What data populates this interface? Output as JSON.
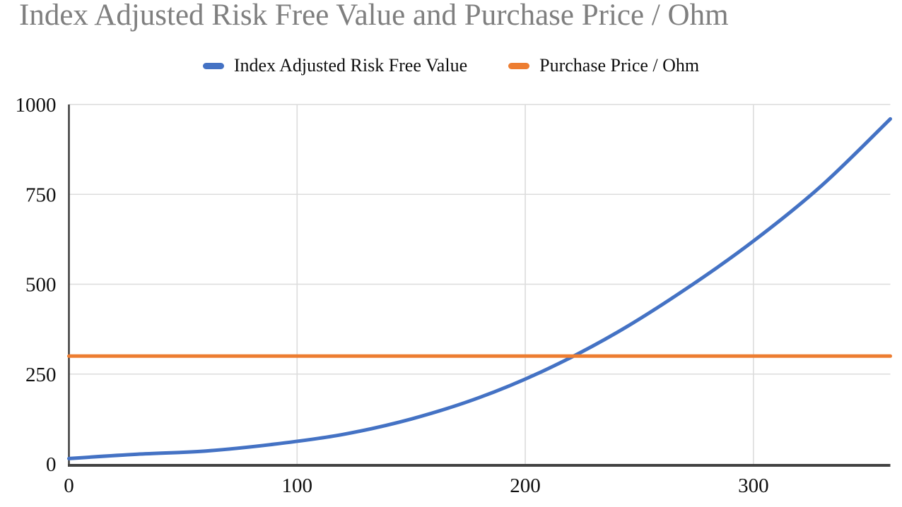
{
  "title": "Index Adjusted Risk Free Value and Purchase Price / Ohm",
  "legend": {
    "items": [
      {
        "label": "Index Adjusted Risk Free Value",
        "color": "#4472C4"
      },
      {
        "label": "Purchase Price / Ohm",
        "color": "#ED7D31"
      }
    ]
  },
  "chart_data": {
    "type": "line",
    "title": "Index Adjusted Risk Free Value and Purchase Price / Ohm",
    "x": [
      0,
      30,
      60,
      90,
      120,
      150,
      180,
      210,
      240,
      270,
      300,
      330,
      360
    ],
    "series": [
      {
        "name": "Index Adjusted Risk Free Value",
        "color": "#4472C4",
        "style": "smooth",
        "values": [
          15,
          27,
          36,
          55,
          82,
          125,
          185,
          265,
          365,
          485,
          620,
          775,
          960
        ]
      },
      {
        "name": "Purchase Price / Ohm",
        "color": "#ED7D31",
        "style": "straight",
        "values": [
          300,
          300,
          300,
          300,
          300,
          300,
          300,
          300,
          300,
          300,
          300,
          300,
          300
        ]
      }
    ],
    "xlabel": "",
    "ylabel": "",
    "xlim": [
      0,
      360
    ],
    "ylim": [
      0,
      1000
    ],
    "x_ticks": [
      0,
      100,
      200,
      300
    ],
    "y_ticks": [
      0,
      250,
      500,
      750,
      1000
    ],
    "grid": true,
    "legend_position": "top-center",
    "annotations": []
  },
  "styles": {
    "title_color": "#7f7f7f",
    "label_color": "#0f0f0f",
    "grid_color": "#dcdcdc",
    "axis_color": "#424242",
    "background": "#ffffff"
  }
}
